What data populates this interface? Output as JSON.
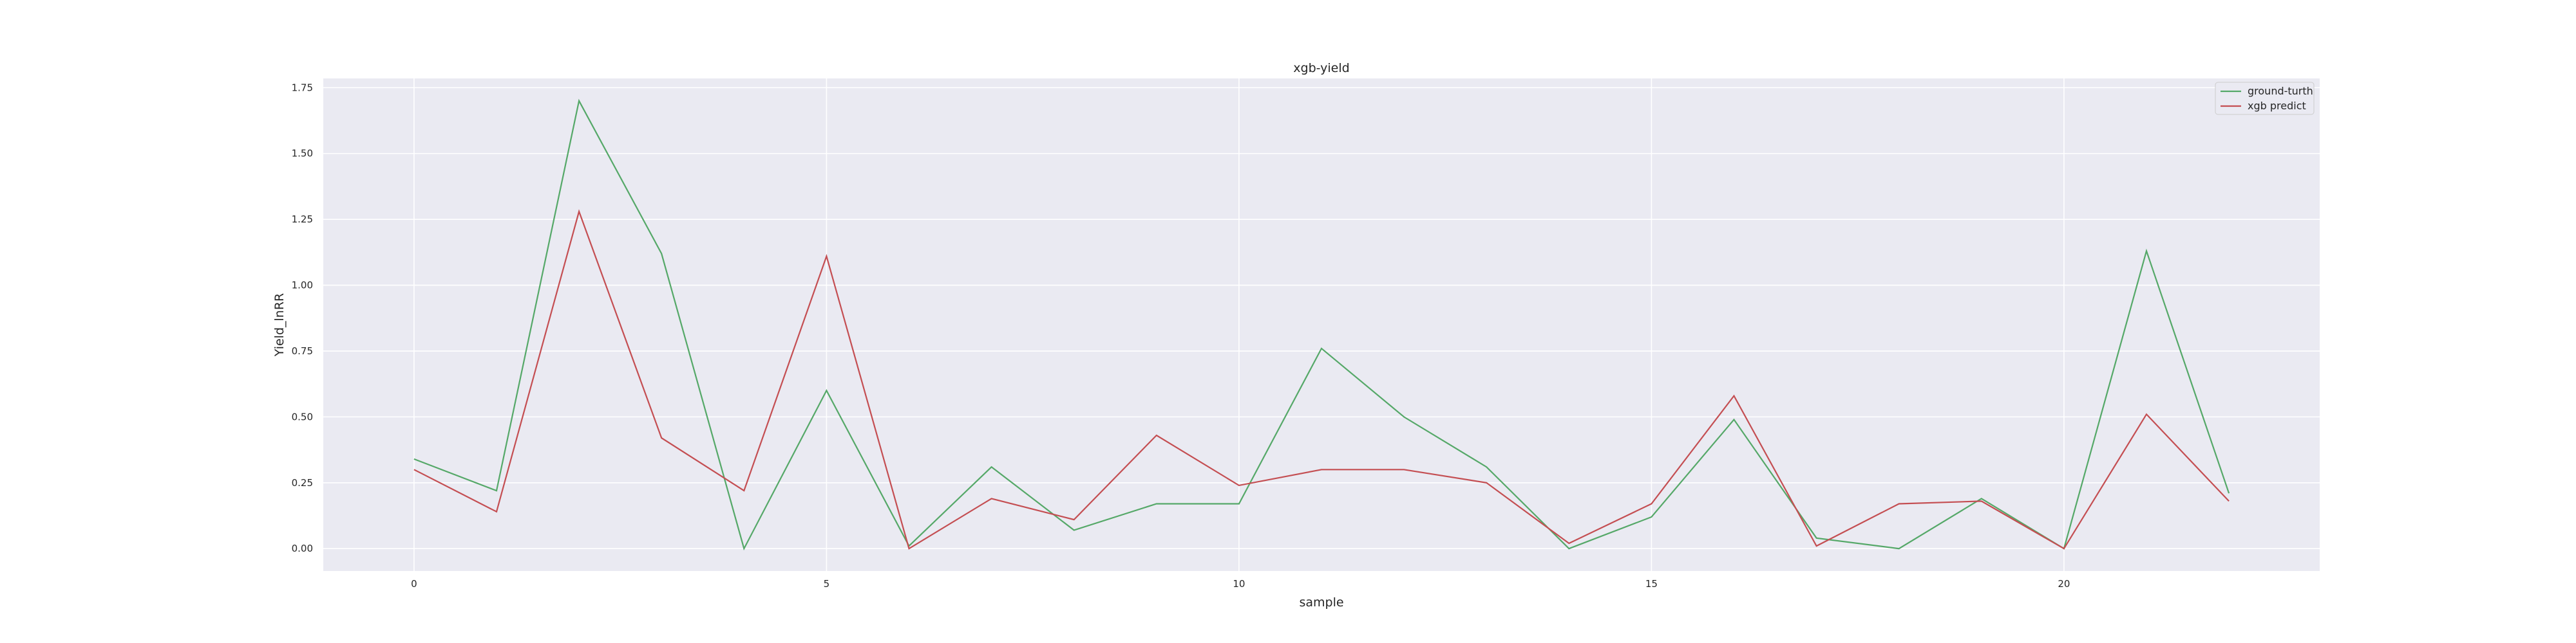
{
  "chart_data": {
    "type": "line",
    "title": "xgb-yield",
    "xlabel": "sample",
    "ylabel": "Yield_lnRR",
    "x": [
      0,
      1,
      2,
      3,
      4,
      5,
      6,
      7,
      8,
      9,
      10,
      11,
      12,
      13,
      14,
      15,
      16,
      17,
      18,
      19,
      20,
      21,
      22
    ],
    "xlim": [
      -1.1,
      23.1
    ],
    "ylim": [
      -0.085,
      1.785
    ],
    "xticks": [
      0,
      5,
      10,
      15,
      20
    ],
    "yticks": [
      0.0,
      0.25,
      0.5,
      0.75,
      1.0,
      1.25,
      1.5,
      1.75
    ],
    "ytick_labels": [
      "0.00",
      "0.25",
      "0.50",
      "0.75",
      "1.00",
      "1.25",
      "1.50",
      "1.75"
    ],
    "grid": true,
    "legend_position": "top-right",
    "series": [
      {
        "name": "ground-turth",
        "color": "#55a868",
        "values": [
          0.34,
          0.22,
          1.7,
          1.12,
          0.0,
          0.6,
          0.01,
          0.31,
          0.07,
          0.17,
          0.17,
          0.76,
          0.5,
          0.31,
          0.0,
          0.12,
          0.49,
          0.04,
          0.0,
          0.19,
          0.0,
          1.13,
          0.21
        ]
      },
      {
        "name": "xgb predict",
        "color": "#c44e52",
        "values": [
          0.3,
          0.14,
          1.28,
          0.42,
          0.22,
          1.11,
          0.0,
          0.19,
          0.11,
          0.43,
          0.24,
          0.3,
          0.3,
          0.25,
          0.02,
          0.17,
          0.58,
          0.01,
          0.17,
          0.18,
          0.0,
          0.51,
          0.18
        ]
      }
    ],
    "colors": {
      "plot_background": "#eaeaf2",
      "grid": "#ffffff",
      "text": "#262626"
    }
  }
}
